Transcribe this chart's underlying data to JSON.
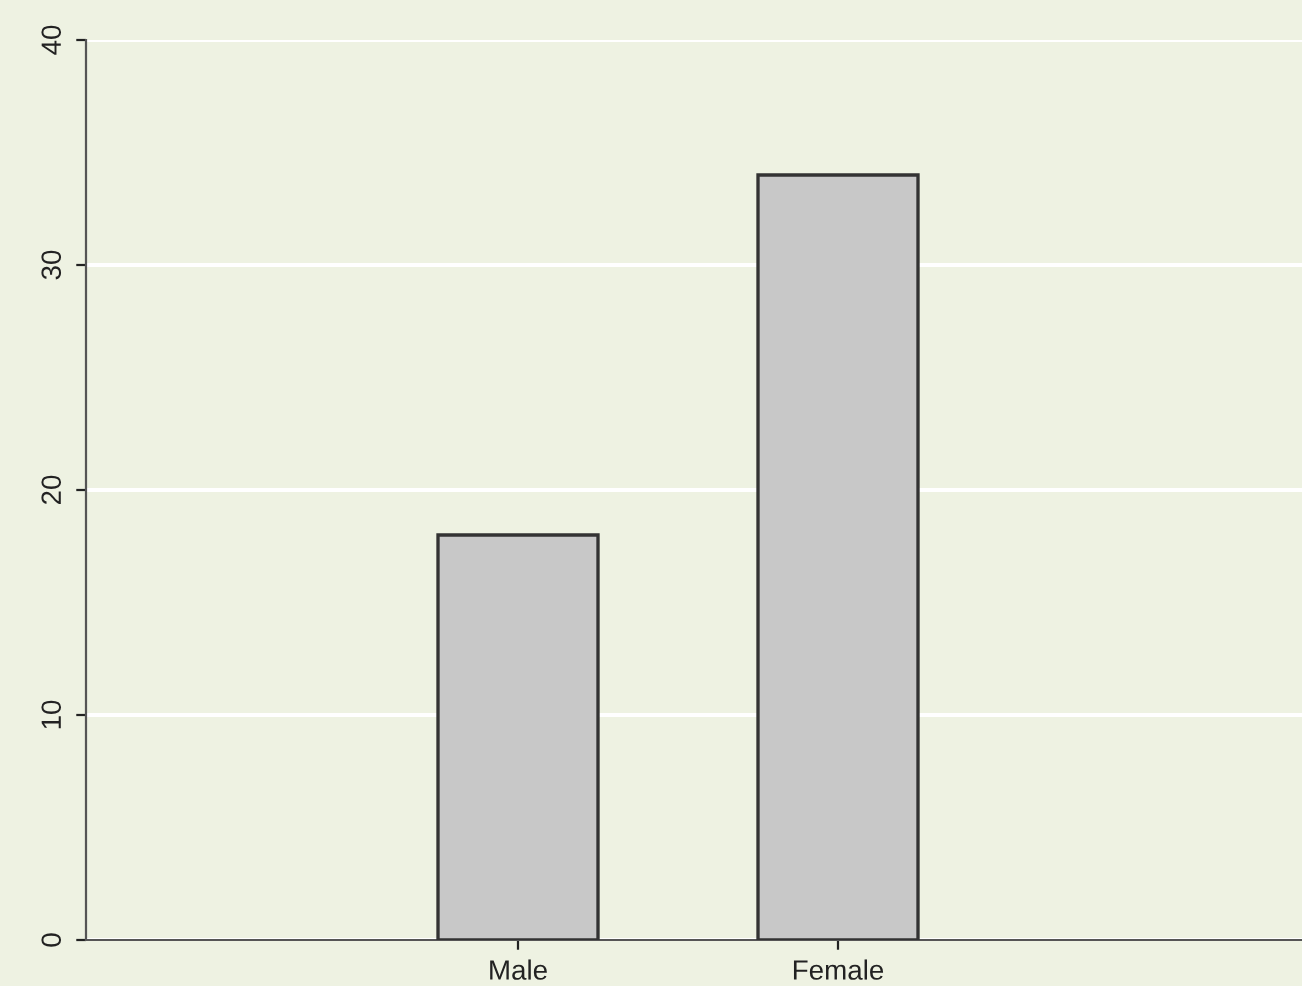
{
  "chart_data": {
    "type": "bar",
    "categories": [
      "Male",
      "Female"
    ],
    "values": [
      18,
      34
    ],
    "color": "#c8c8c8",
    "ylim": [
      0,
      40
    ],
    "yticks": [
      0,
      10,
      20,
      30,
      40
    ],
    "grid": "y"
  }
}
